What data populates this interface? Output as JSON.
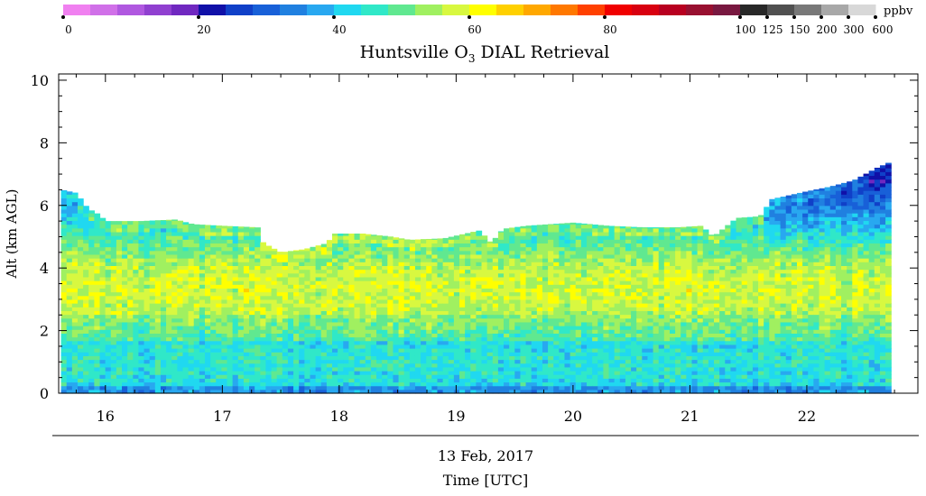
{
  "chart_data": {
    "type": "heatmap",
    "title": "Huntsville O",
    "title_subscript": "3",
    "title_suffix": " DIAL Retrieval",
    "xlabel": "Time [UTC]",
    "date_label": "13 Feb, 2017",
    "ylabel": "Alt (km AGL)",
    "xlim": [
      15.6,
      22.95
    ],
    "ylim": [
      0,
      10.2
    ],
    "x_ticks": [
      16,
      17,
      18,
      19,
      20,
      21,
      22
    ],
    "y_ticks": [
      0,
      2,
      4,
      6,
      8,
      10
    ],
    "data_time_range": [
      15.62,
      22.72
    ],
    "colorbar": {
      "unit": "ppbv",
      "tick_labels": [
        "0",
        "20",
        "40",
        "60",
        "80",
        "100",
        "125",
        "150",
        "200",
        "300",
        "600"
      ],
      "colors": [
        "#f080f0",
        "#d070e8",
        "#b058e0",
        "#9040d0",
        "#7028c0",
        "#1010a8",
        "#1040c8",
        "#1860d8",
        "#2080e0",
        "#28a8f0",
        "#20d8f0",
        "#30e8c8",
        "#60e890",
        "#a0f060",
        "#d8f840",
        "#ffff00",
        "#ffd000",
        "#ffa800",
        "#ff7800",
        "#ff4000",
        "#f00000",
        "#d80010",
        "#b80020",
        "#981030",
        "#781840",
        "#282828",
        "#505050",
        "#787878",
        "#a8a8a8",
        "#d8d8d8"
      ]
    },
    "top_boundary_km": [
      [
        15.62,
        6.5
      ],
      [
        15.75,
        6.4
      ],
      [
        15.85,
        5.9
      ],
      [
        15.95,
        5.7
      ],
      [
        16.0,
        5.5
      ],
      [
        16.3,
        5.5
      ],
      [
        16.6,
        5.55
      ],
      [
        16.75,
        5.4
      ],
      [
        17.0,
        5.35
      ],
      [
        17.3,
        5.3
      ],
      [
        17.35,
        4.8
      ],
      [
        17.5,
        4.5
      ],
      [
        17.7,
        4.6
      ],
      [
        17.9,
        4.8
      ],
      [
        17.95,
        5.1
      ],
      [
        18.2,
        5.1
      ],
      [
        18.45,
        5.0
      ],
      [
        18.6,
        4.9
      ],
      [
        18.9,
        4.95
      ],
      [
        19.2,
        5.2
      ],
      [
        19.3,
        4.8
      ],
      [
        19.4,
        5.25
      ],
      [
        19.6,
        5.35
      ],
      [
        20.0,
        5.45
      ],
      [
        20.3,
        5.35
      ],
      [
        20.6,
        5.3
      ],
      [
        20.9,
        5.3
      ],
      [
        21.1,
        5.35
      ],
      [
        21.2,
        5.0
      ],
      [
        21.4,
        5.6
      ],
      [
        21.6,
        5.65
      ],
      [
        21.7,
        6.2
      ],
      [
        22.0,
        6.45
      ],
      [
        22.2,
        6.6
      ],
      [
        22.4,
        6.8
      ],
      [
        22.6,
        7.2
      ],
      [
        22.72,
        7.4
      ]
    ]
  }
}
